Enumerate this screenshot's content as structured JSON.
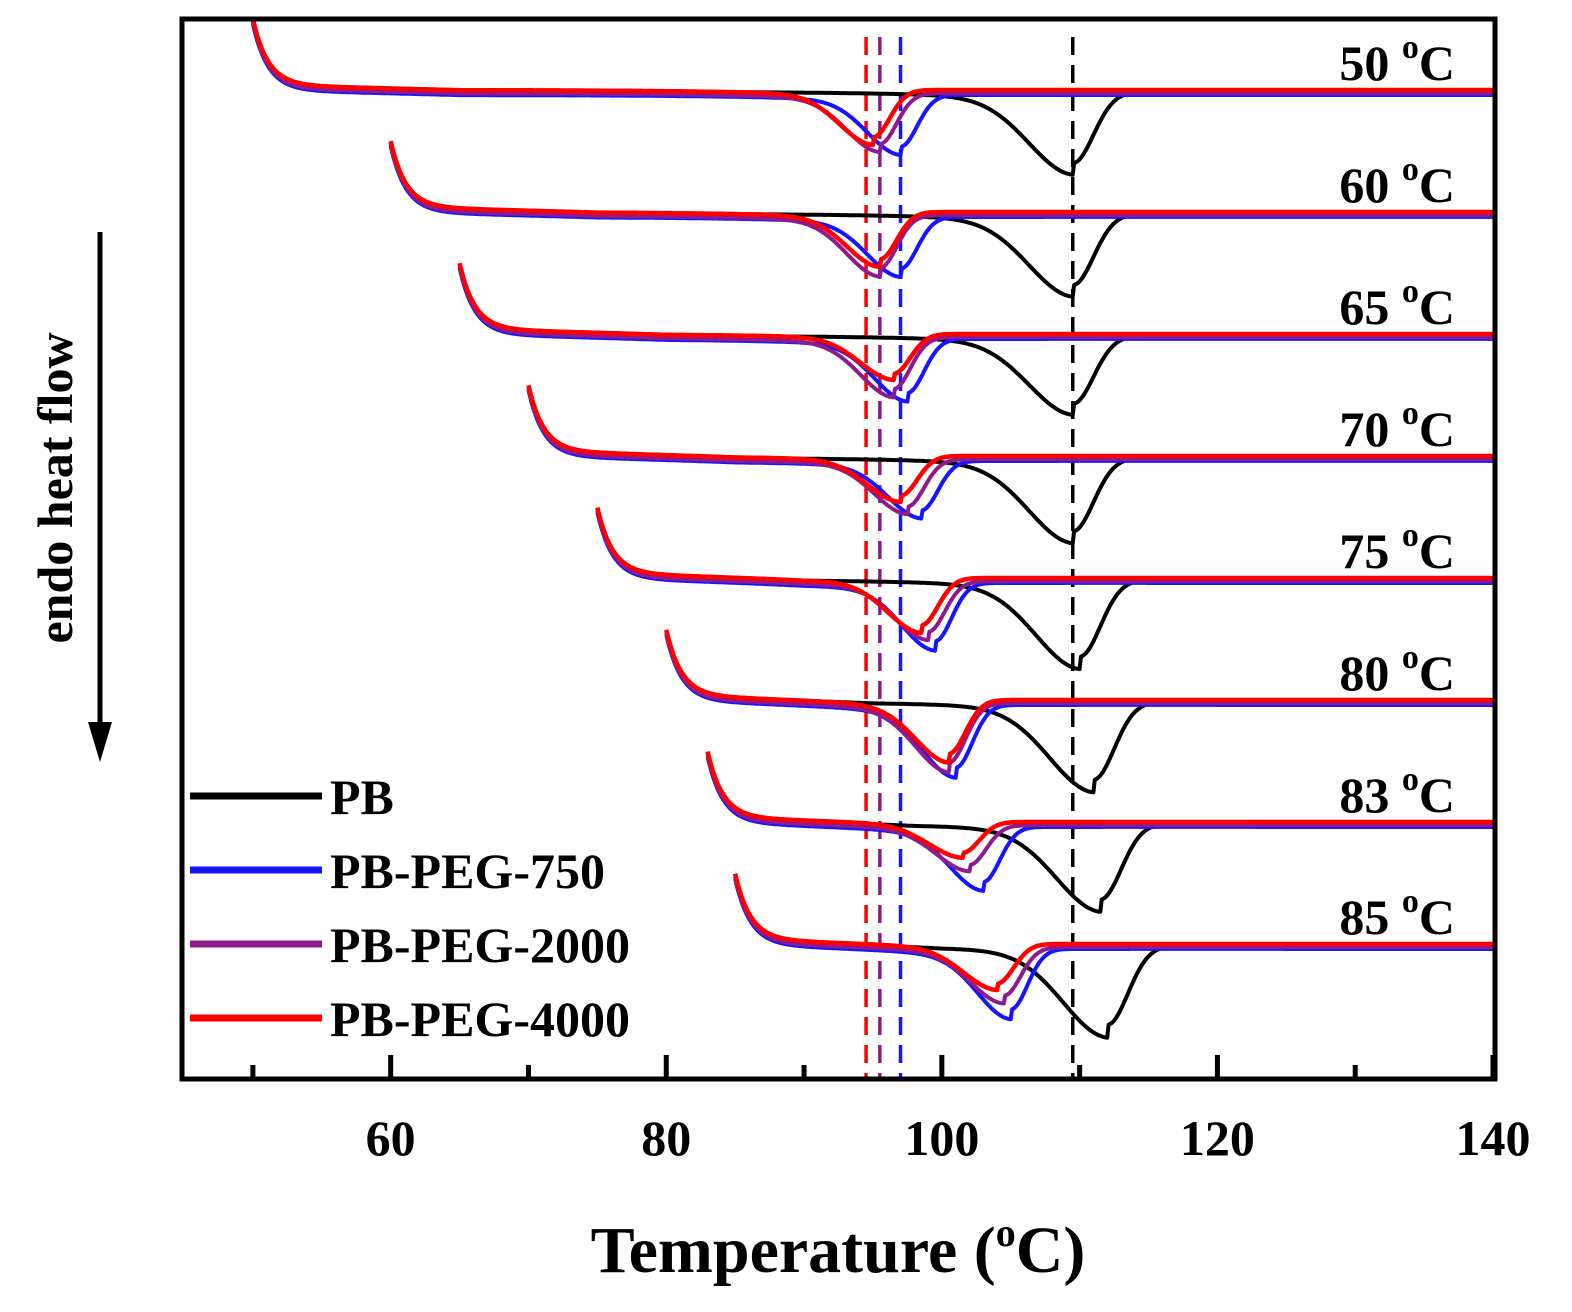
{
  "chart_data": {
    "type": "line",
    "title": "",
    "xlabel_main": "Temperature (",
    "xlabel_sup": "o",
    "xlabel_tail": "C)",
    "ylabel": "endo heat flow",
    "xlim": [
      45,
      140
    ],
    "x_ticks": [
      60,
      80,
      100,
      120,
      140
    ],
    "x_minor_ticks": [
      50,
      70,
      90,
      110,
      130
    ],
    "curve_sets": [
      {
        "temp": 50,
        "label": "50",
        "peaks": [
          109.5,
          97.0,
          95.5,
          95.0
        ],
        "depths": [
          6.5,
          4.7,
          4.6,
          4.3
        ]
      },
      {
        "temp": 60,
        "label": "60",
        "peaks": [
          109.5,
          97.0,
          95.5,
          95.5
        ],
        "depths": [
          6.5,
          4.7,
          4.8,
          4.3
        ]
      },
      {
        "temp": 65,
        "label": "65",
        "peaks": [
          109.5,
          97.5,
          96.5,
          96.5
        ],
        "depths": [
          6.2,
          4.9,
          4.7,
          3.6
        ]
      },
      {
        "temp": 70,
        "label": "70",
        "peaks": [
          109.5,
          98.5,
          97.5,
          97.0
        ],
        "depths": [
          6.7,
          4.5,
          4.3,
          3.6
        ]
      },
      {
        "temp": 75,
        "label": "75",
        "peaks": [
          110.0,
          99.5,
          99.0,
          98.5
        ],
        "depths": [
          7.0,
          5.3,
          4.6,
          4.3
        ]
      },
      {
        "temp": 80,
        "label": "80",
        "peaks": [
          111.0,
          101.0,
          100.5,
          100.5
        ],
        "depths": [
          7.1,
          5.7,
          5.4,
          4.9
        ]
      },
      {
        "temp": 83,
        "label": "83",
        "peaks": [
          111.5,
          103.0,
          102.0,
          101.5
        ],
        "depths": [
          6.9,
          5.0,
          3.6,
          2.8
        ]
      },
      {
        "temp": 85,
        "label": "85",
        "peaks": [
          112.0,
          105.0,
          104.5,
          104.0
        ],
        "depths": [
          7.2,
          5.5,
          4.4,
          3.6
        ]
      }
    ],
    "reference_lines": [
      {
        "x": 94.5,
        "color": "#ff0000"
      },
      {
        "x": 95.5,
        "color": "#8e1a8e"
      },
      {
        "x": 97.0,
        "color": "#1515ff"
      },
      {
        "x": 109.5,
        "color": "#000000"
      }
    ],
    "series": [
      {
        "name": "PB",
        "color": "#000000"
      },
      {
        "name": "PB-PEG-750",
        "color": "#1515ff"
      },
      {
        "name": "PB-PEG-2000",
        "color": "#8e1a8e"
      },
      {
        "name": "PB-PEG-4000",
        "color": "#ff0000"
      }
    ],
    "legend_position": "bottom-left",
    "temp_unit_sup": "o",
    "temp_unit": "C"
  }
}
